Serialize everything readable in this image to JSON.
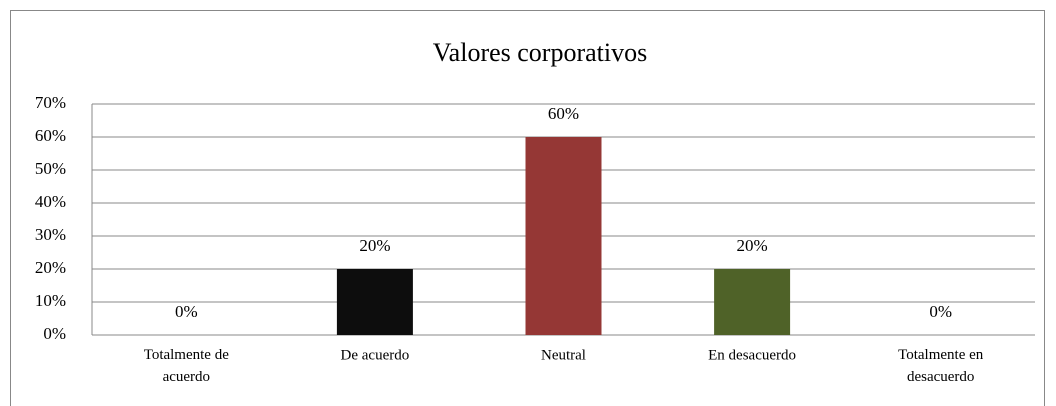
{
  "chart_data": {
    "type": "bar",
    "title": "Valores corporativos",
    "categories": [
      "Totalmente de\nacuerdo",
      "De acuerdo",
      "Neutral",
      "En  desacuerdo",
      "Totalmente en\ndesacuerdo"
    ],
    "values": [
      0,
      20,
      60,
      20,
      0
    ],
    "value_labels": [
      "0%",
      "20%",
      "60%",
      "20%",
      "0%"
    ],
    "colors": [
      "#4f81bd",
      "#0d0d0d",
      "#953735",
      "#4f6228",
      "#4f81bd"
    ],
    "ylim": [
      0,
      70
    ],
    "yticks": [
      {
        "value": 0,
        "label": "0%"
      },
      {
        "value": 10,
        "label": "10%"
      },
      {
        "value": 20,
        "label": "20%"
      },
      {
        "value": 30,
        "label": "30%"
      },
      {
        "value": 40,
        "label": "40%"
      },
      {
        "value": 50,
        "label": "50%"
      },
      {
        "value": 60,
        "label": "60%"
      },
      {
        "value": 70,
        "label": "70%"
      }
    ],
    "grid": true
  }
}
